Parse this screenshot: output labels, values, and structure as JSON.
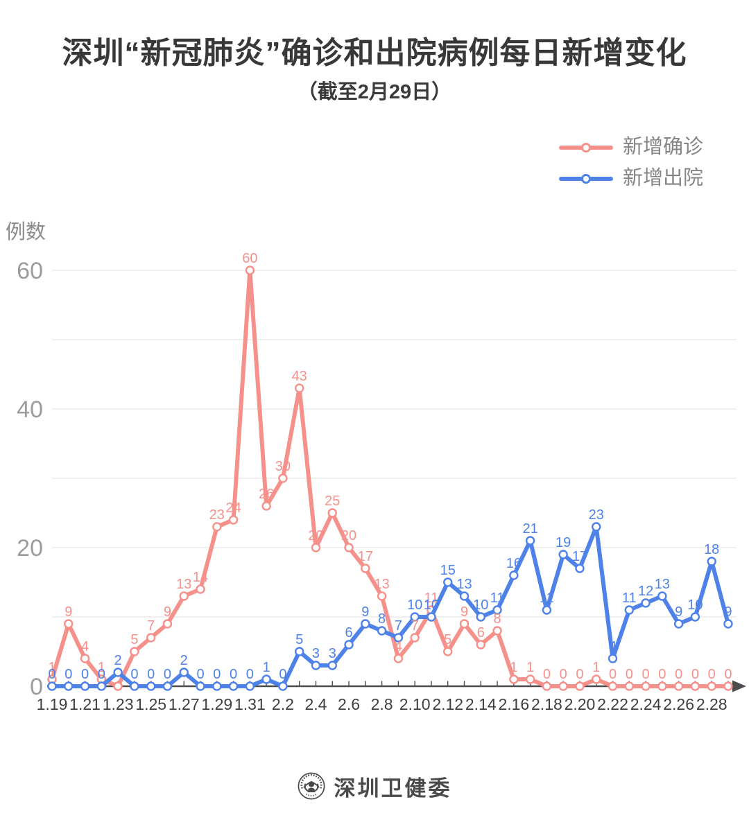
{
  "header": {
    "title": "深圳“新冠肺炎”确诊和出院病例每日新增变化",
    "subtitle": "（截至2月29日）"
  },
  "legend": {
    "items": [
      {
        "label": "新增确诊",
        "color": "#F5918A"
      },
      {
        "label": "新增出院",
        "color": "#4E82E8"
      }
    ]
  },
  "footer": {
    "brand": "深圳卫健委"
  },
  "colors": {
    "confirmed": "#F5918A",
    "discharged": "#4E82E8",
    "grid": "#E8E8E8",
    "axis": "#4D4D4D",
    "y_tick_label": "#9C9C9C",
    "x_tick_label": "#404040",
    "unit_label": "#8B8B8B",
    "title_text": "#383838",
    "legend_text": "#858585",
    "background": "#FFFFFF"
  },
  "chart_data": {
    "type": "line",
    "title": "深圳“新冠肺炎”确诊和出院病例每日新增变化",
    "subtitle": "（截至2月29日）",
    "ylabel": "例数",
    "xlabel": "",
    "ylim": [
      0,
      60
    ],
    "yticks_labeled": [
      0,
      20,
      40,
      60
    ],
    "grid_interval": 10,
    "grid": "horizontal",
    "legend_position": "top-right",
    "x_label_every": 2,
    "categories": [
      "1.19",
      "1.20",
      "1.21",
      "1.22",
      "1.23",
      "1.24",
      "1.25",
      "1.26",
      "1.27",
      "1.28",
      "1.29",
      "1.30",
      "1.31",
      "2.1",
      "2.2",
      "2.3",
      "2.4",
      "2.5",
      "2.6",
      "2.7",
      "2.8",
      "2.9",
      "2.10",
      "2.11",
      "2.12",
      "2.13",
      "2.14",
      "2.15",
      "2.16",
      "2.17",
      "2.18",
      "2.19",
      "2.20",
      "2.21",
      "2.22",
      "2.23",
      "2.24",
      "2.25",
      "2.26",
      "2.27",
      "2.28",
      "2.29"
    ],
    "series": [
      {
        "name": "新增确诊",
        "color": "#F5918A",
        "values": [
          1,
          9,
          4,
          1,
          0,
          5,
          7,
          9,
          13,
          14,
          23,
          24,
          60,
          26,
          30,
          43,
          20,
          25,
          20,
          17,
          13,
          4,
          7,
          11,
          5,
          9,
          6,
          8,
          1,
          1,
          0,
          0,
          0,
          1,
          0,
          0,
          0,
          0,
          0,
          0,
          0,
          0
        ],
        "hidden_value_labels": [
          4
        ]
      },
      {
        "name": "新增出院",
        "color": "#4E82E8",
        "values": [
          0,
          0,
          0,
          0,
          2,
          0,
          0,
          0,
          2,
          0,
          0,
          0,
          0,
          1,
          0,
          5,
          3,
          3,
          6,
          9,
          8,
          7,
          10,
          10,
          15,
          13,
          10,
          11,
          16,
          21,
          11,
          19,
          17,
          23,
          4,
          11,
          12,
          13,
          9,
          10,
          18,
          9
        ],
        "hidden_value_labels": []
      }
    ]
  }
}
